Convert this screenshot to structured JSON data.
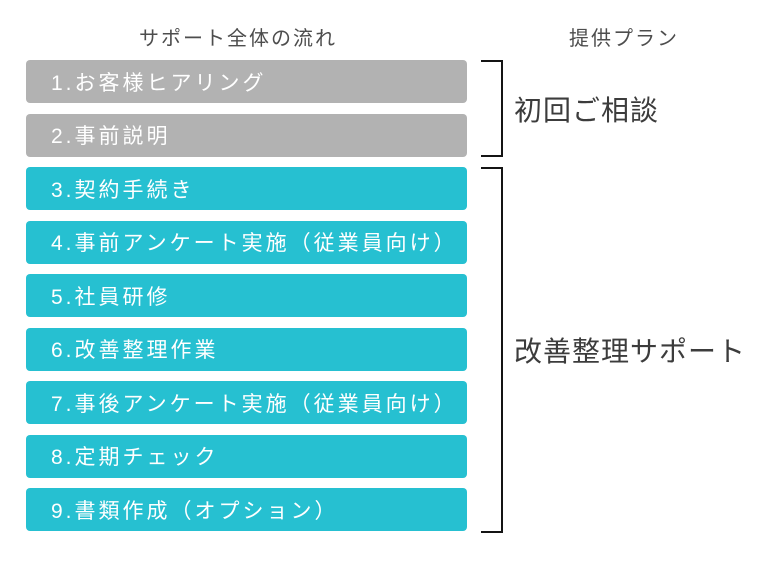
{
  "headers": {
    "flow_title": "サポート全体の流れ",
    "plan_title": "提供プラン"
  },
  "steps": [
    {
      "label": "1.お客様ヒアリング",
      "phase": "initial"
    },
    {
      "label": "2.事前説明",
      "phase": "initial"
    },
    {
      "label": "3.契約手続き",
      "phase": "support"
    },
    {
      "label": "4.事前アンケート実施（従業員向け）",
      "phase": "support"
    },
    {
      "label": "5.社員研修",
      "phase": "support"
    },
    {
      "label": "6.改善整理作業",
      "phase": "support"
    },
    {
      "label": "7.事後アンケート実施（従業員向け）",
      "phase": "support"
    },
    {
      "label": "8.定期チェック",
      "phase": "support"
    },
    {
      "label": "9.書類作成（オプション）",
      "phase": "support"
    }
  ],
  "plans": [
    {
      "label": "初回ご相談",
      "covers_steps": "1-2"
    },
    {
      "label": "改善整理サポート",
      "covers_steps": "3-9"
    }
  ],
  "colors": {
    "initial_step_bg": "#b2b2b2",
    "support_step_bg": "#26c0d1",
    "step_text": "#ffffff",
    "title_text": "#4d4d4d",
    "label_text": "#3c3c3c",
    "bracket_line": "#141414"
  }
}
